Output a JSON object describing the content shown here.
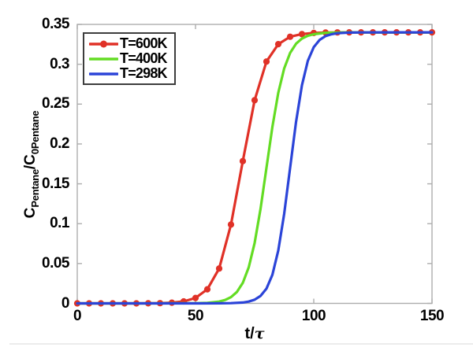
{
  "chart_data": {
    "type": "line",
    "title": "",
    "xlabel": "t/τ",
    "xlabel_parts": {
      "main": "t/",
      "tau": "τ"
    },
    "ylabel": "C_Pentane/C_0Pentane",
    "ylabel_parts": {
      "c1": "C",
      "sub1": "Pentane",
      "slash": "/",
      "c2": "C",
      "sub2": "0Pentane"
    },
    "xlim": [
      0,
      150
    ],
    "ylim": [
      0,
      0.35
    ],
    "xticks": {
      "values": [
        0,
        50,
        100,
        150
      ],
      "labels": [
        "0",
        "50",
        "100",
        "150"
      ]
    },
    "yticks": {
      "values": [
        0,
        0.05,
        0.1,
        0.15,
        0.2,
        0.25,
        0.3,
        0.35
      ],
      "labels": [
        "0",
        "0.05",
        "0.1",
        "0.15",
        "0.2",
        "0.25",
        "0.3",
        "0.35"
      ]
    },
    "grid": false,
    "legend_position": "top-left",
    "axis_color": "#adadad",
    "plateau_value": 0.34,
    "series": [
      {
        "name": "T=600K",
        "color": "#e03127",
        "marker": "circle",
        "x": [
          0,
          5,
          10,
          15,
          20,
          25,
          30,
          35,
          40,
          45,
          50,
          55,
          60,
          65,
          70,
          75,
          80,
          85,
          90,
          95,
          100,
          105,
          110,
          115,
          120,
          125,
          130,
          135,
          140,
          145,
          150
        ],
        "y": [
          0,
          0,
          0,
          0,
          0,
          0,
          0.0001,
          0.0003,
          0.0009,
          0.0025,
          0.0068,
          0.0177,
          0.0437,
          0.0989,
          0.1785,
          0.2549,
          0.3034,
          0.3252,
          0.3345,
          0.3379,
          0.3392,
          0.3397,
          0.3399,
          0.34,
          0.34,
          0.34,
          0.34,
          0.34,
          0.34,
          0.34,
          0.34
        ]
      },
      {
        "name": "T=400K",
        "color": "#63dc23",
        "marker": "none",
        "x": [
          0,
          10,
          20,
          30,
          40,
          50,
          55,
          60,
          62.5,
          65,
          67.5,
          70,
          72.5,
          75,
          77.5,
          80,
          82.5,
          85,
          87.5,
          90,
          92.5,
          95,
          97.5,
          100,
          105,
          110,
          115,
          120,
          130,
          140,
          150
        ],
        "y": [
          0,
          0,
          0,
          0,
          0.0001,
          0.0002,
          0.0007,
          0.0023,
          0.0042,
          0.0078,
          0.0143,
          0.0258,
          0.0452,
          0.0758,
          0.1187,
          0.17,
          0.2213,
          0.2642,
          0.2948,
          0.3142,
          0.3257,
          0.3322,
          0.3358,
          0.3377,
          0.3394,
          0.3398,
          0.34,
          0.34,
          0.34,
          0.34,
          0.34
        ]
      },
      {
        "name": "T=298K",
        "color": "#2b44d8",
        "marker": "none",
        "x": [
          0,
          10,
          20,
          30,
          40,
          50,
          60,
          65,
          70,
          72.5,
          75,
          77.5,
          80,
          82.5,
          85,
          87.5,
          90,
          92.5,
          95,
          97.5,
          100,
          102.5,
          105,
          107.5,
          110,
          115,
          120,
          130,
          140,
          150
        ],
        "y": [
          0,
          0,
          0,
          0,
          0,
          0,
          0.0001,
          0.0003,
          0.0011,
          0.0023,
          0.0046,
          0.0094,
          0.0185,
          0.0357,
          0.0664,
          0.1125,
          0.17,
          0.2275,
          0.2736,
          0.3043,
          0.3215,
          0.3306,
          0.3354,
          0.3377,
          0.3389,
          0.3397,
          0.3399,
          0.34,
          0.34,
          0.34
        ]
      }
    ]
  }
}
